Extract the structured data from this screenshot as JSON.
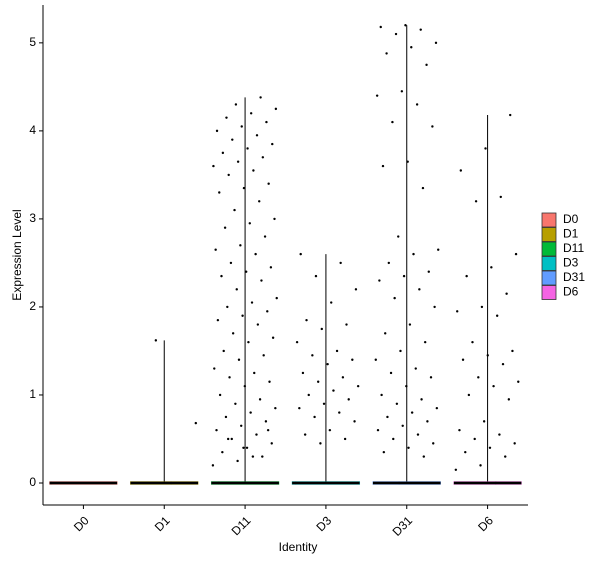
{
  "chart_data": {
    "type": "violin",
    "x_label": "Identity",
    "y_label": "Expression Level",
    "categories": [
      "D0",
      "D1",
      "D11",
      "D3",
      "D31",
      "D6"
    ],
    "series": [
      {
        "name": "D0",
        "color": "#F8766D",
        "values": [
          0
        ]
      },
      {
        "name": "D1",
        "color": "#B79F00",
        "values": [
          1.62,
          0.68,
          0
        ]
      },
      {
        "name": "D11",
        "color": "#00BA38",
        "values": [
          4.38,
          4.3,
          4.25,
          4.2,
          4.15,
          4.1,
          4.05,
          4.0,
          3.95,
          3.9,
          3.85,
          3.8,
          3.75,
          3.7,
          3.65,
          3.6,
          3.55,
          3.5,
          3.4,
          3.35,
          3.3,
          3.2,
          3.1,
          3.0,
          2.95,
          2.9,
          2.8,
          2.7,
          2.65,
          2.6,
          2.5,
          2.45,
          2.4,
          2.35,
          2.3,
          2.2,
          2.1,
          2.05,
          2.0,
          1.95,
          1.9,
          1.85,
          1.8,
          1.7,
          1.65,
          1.6,
          1.5,
          1.45,
          1.4,
          1.3,
          1.25,
          1.2,
          1.15,
          1.1,
          1.0,
          0.95,
          0.9,
          0.85,
          0.8,
          0.75,
          0.7,
          0.65,
          0.6,
          0.55,
          0.5,
          0.45,
          0.4,
          0.35,
          0.3,
          0.25,
          0.2,
          0.3,
          0.5,
          0.6,
          0.4,
          0
        ]
      },
      {
        "name": "D3",
        "color": "#00BFC4",
        "values": [
          2.6,
          2.5,
          2.35,
          2.2,
          2.05,
          1.85,
          1.8,
          1.75,
          1.6,
          1.5,
          1.45,
          1.4,
          1.35,
          1.25,
          1.2,
          1.15,
          1.1,
          1.05,
          1.0,
          0.95,
          0.9,
          0.85,
          0.8,
          0.75,
          0.7,
          0.6,
          0.55,
          0.5,
          0.45,
          0
        ]
      },
      {
        "name": "D31",
        "color": "#619CFF",
        "values": [
          5.2,
          5.18,
          5.15,
          5.1,
          5.0,
          4.95,
          4.88,
          4.75,
          4.45,
          4.4,
          4.3,
          4.1,
          4.05,
          3.65,
          3.6,
          3.35,
          2.8,
          2.65,
          2.6,
          2.5,
          2.4,
          2.35,
          2.3,
          2.2,
          2.1,
          2.0,
          1.8,
          1.7,
          1.6,
          1.5,
          1.4,
          1.3,
          1.25,
          1.2,
          1.1,
          1.0,
          0.95,
          0.9,
          0.85,
          0.8,
          0.75,
          0.7,
          0.65,
          0.6,
          0.55,
          0.5,
          0.45,
          0.4,
          0.35,
          0.3,
          0
        ]
      },
      {
        "name": "D6",
        "color": "#F564E3",
        "values": [
          4.18,
          3.8,
          3.55,
          3.25,
          3.2,
          2.6,
          2.45,
          2.35,
          2.15,
          2.0,
          1.95,
          1.9,
          1.6,
          1.5,
          1.45,
          1.4,
          1.35,
          1.2,
          1.15,
          1.1,
          1.0,
          0.95,
          0.7,
          0.6,
          0.55,
          0.5,
          0.45,
          0.4,
          0.35,
          0.3,
          0.2,
          0.15,
          0
        ]
      }
    ],
    "ylim": [
      -0.25,
      5.43
    ],
    "yticks": [
      0,
      1,
      2,
      3,
      4,
      5
    ],
    "grid": false
  }
}
